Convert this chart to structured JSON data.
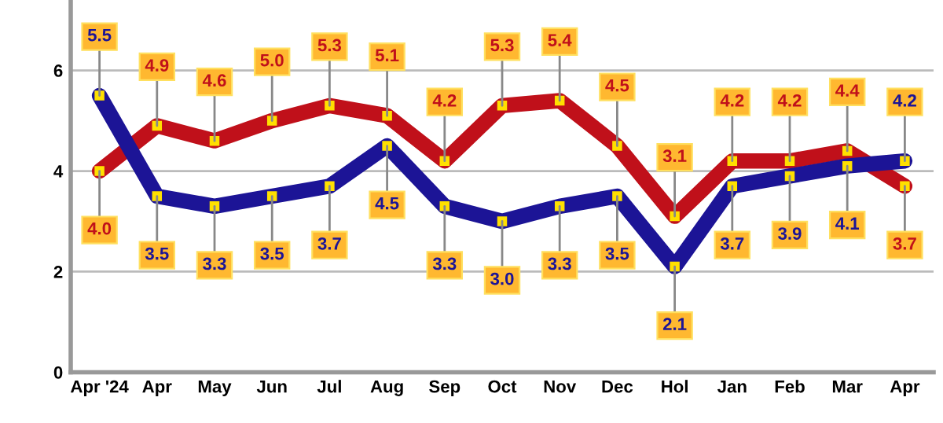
{
  "chart_data": {
    "type": "line",
    "categories": [
      "Apr '24",
      "Apr",
      "May",
      "Jun",
      "Jul",
      "Aug",
      "Sep",
      "Oct",
      "Nov",
      "Dec",
      "Hol",
      "Jan",
      "Feb",
      "Mar",
      "Apr"
    ],
    "series": [
      {
        "color": "#c0101a",
        "values": [
          4.0,
          4.9,
          4.6,
          5.0,
          5.3,
          5.1,
          4.2,
          5.3,
          5.4,
          4.5,
          3.1,
          4.2,
          4.2,
          4.4,
          3.7
        ],
        "value_labels": [
          "4.0",
          "4.9",
          "4.6",
          "5.0",
          "5.3",
          "5.1",
          "4.2",
          "5.3",
          "5.4",
          "4.5",
          "3.1",
          "4.2",
          "4.2",
          "4.4",
          "3.7"
        ]
      },
      {
        "color": "#1c1496",
        "values": [
          5.5,
          3.5,
          3.3,
          3.5,
          3.7,
          4.5,
          3.3,
          3.0,
          3.3,
          3.5,
          2.1,
          3.7,
          3.9,
          4.1,
          4.2
        ],
        "value_labels": [
          "5.5",
          "3.5",
          "3.3",
          "3.5",
          "3.7",
          "4.5",
          "3.3",
          "3.0",
          "3.3",
          "3.5",
          "2.1",
          "3.7",
          "3.9",
          "4.1",
          "4.2"
        ]
      }
    ],
    "ylim": [
      0,
      7.4
    ],
    "yticks": [
      0,
      2,
      4,
      6
    ],
    "grid": "y",
    "marker": "square",
    "line_style": "solid",
    "legend": false
  }
}
